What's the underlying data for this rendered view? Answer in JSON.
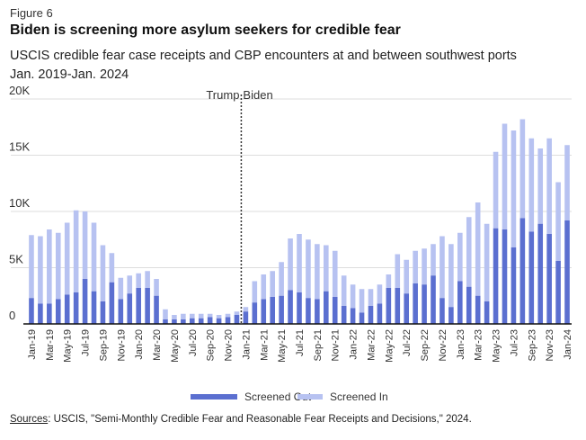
{
  "figure_label": "Figure 6",
  "title": "Biden is screening more asylum seekers for credible fear",
  "subtitle_line1": "USCIS credible fear case receipts and CBP encounters at and between southwest ports",
  "subtitle_line2": "Jan. 2019-Jan. 2024",
  "source_label": "Sources",
  "source_text": ": USCIS, \"Semi-Monthly Credible Fear and Reasonable Fear Receipts and Decisions,\" 2024.",
  "colors": {
    "screened_out": "#5b6fd0",
    "screened_in": "#b7c2f1",
    "axis": "#111111",
    "grid": "#dddddd",
    "divider": "#333333"
  },
  "chart_data": {
    "type": "bar",
    "stacked": true,
    "ylim": [
      0,
      20000
    ],
    "yticks": [
      0,
      5000,
      10000,
      15000,
      20000
    ],
    "ytick_labels": [
      "0",
      "5K",
      "10K",
      "15K",
      "20K"
    ],
    "grid": true,
    "legend_position": "bottom",
    "annotation": {
      "label_left": "Trump",
      "label_right": "Biden",
      "between_index": 24
    },
    "categories": [
      "Jan-19",
      "Feb-19",
      "Mar-19",
      "Apr-19",
      "May-19",
      "Jun-19",
      "Jul-19",
      "Aug-19",
      "Sep-19",
      "Oct-19",
      "Nov-19",
      "Dec-19",
      "Jan-20",
      "Feb-20",
      "Mar-20",
      "Apr-20",
      "May-20",
      "Jun-20",
      "Jul-20",
      "Aug-20",
      "Sep-20",
      "Oct-20",
      "Nov-20",
      "Dec-20",
      "Jan-21",
      "Feb-21",
      "Mar-21",
      "Apr-21",
      "May-21",
      "Jun-21",
      "Jul-21",
      "Aug-21",
      "Sep-21",
      "Oct-21",
      "Nov-21",
      "Dec-21",
      "Jan-22",
      "Feb-22",
      "Mar-22",
      "Apr-22",
      "May-22",
      "Jun-22",
      "Jul-22",
      "Aug-22",
      "Sep-22",
      "Oct-22",
      "Nov-22",
      "Dec-22",
      "Jan-23",
      "Feb-23",
      "Mar-23",
      "Apr-23",
      "May-23",
      "Jun-23",
      "Jul-23",
      "Aug-23",
      "Sep-23",
      "Oct-23",
      "Nov-23",
      "Dec-23",
      "Jan-24"
    ],
    "tick_labels": [
      "Jan-19",
      "Mar-19",
      "May-19",
      "Jul-19",
      "Sep-19",
      "Nov-19",
      "Jan-20",
      "Mar-20",
      "May-20",
      "Jul-20",
      "Sep-20",
      "Nov-20",
      "Jan-21",
      "Mar-21",
      "May-21",
      "Jul-21",
      "Sep-21",
      "Nov-21",
      "Jan-22",
      "Mar-22",
      "May-22",
      "Jul-22",
      "Sep-22",
      "Nov-22",
      "Jan-23",
      "Mar-23",
      "May-23",
      "Jul-23",
      "Sep-23",
      "Nov-23",
      "Jan-24"
    ],
    "series": [
      {
        "name": "Screened Out",
        "values": [
          2300,
          1800,
          1800,
          2200,
          2600,
          2800,
          4000,
          2900,
          2000,
          3700,
          2200,
          2700,
          3200,
          3200,
          2500,
          400,
          400,
          400,
          500,
          500,
          600,
          500,
          600,
          800,
          1100,
          1900,
          2200,
          2400,
          2500,
          3000,
          2800,
          2300,
          2200,
          2900,
          2400,
          1600,
          1400,
          1000,
          1600,
          1800,
          3200,
          3200,
          2700,
          3600,
          3500,
          4300,
          2300,
          1500,
          3800,
          3300,
          2500,
          2000,
          8500,
          8400,
          6800,
          9400,
          8200,
          8900,
          8000,
          5600,
          9200
        ]
      },
      {
        "name": "Screened In",
        "values": [
          5600,
          6000,
          6600,
          5900,
          6400,
          7300,
          6000,
          6100,
          5000,
          2600,
          1900,
          1600,
          1300,
          1500,
          1500,
          900,
          400,
          500,
          400,
          400,
          300,
          300,
          300,
          300,
          400,
          1900,
          2200,
          2300,
          3000,
          4600,
          5200,
          5200,
          4900,
          4100,
          4100,
          2700,
          2100,
          2100,
          1500,
          1700,
          1200,
          3000,
          3000,
          2900,
          3200,
          2800,
          5500,
          5600,
          4300,
          6200,
          8300,
          6900,
          6800,
          9400,
          10400,
          8800,
          8300,
          6700,
          8500,
          7000,
          6700
        ]
      }
    ]
  }
}
